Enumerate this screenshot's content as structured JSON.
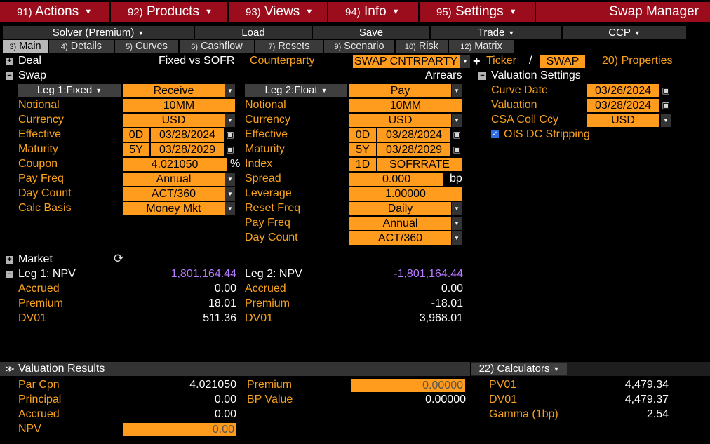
{
  "menu": {
    "actions": {
      "num": "91)",
      "label": "Actions"
    },
    "products": {
      "num": "92)",
      "label": "Products"
    },
    "views": {
      "num": "93)",
      "label": "Views"
    },
    "info": {
      "num": "94)",
      "label": "Info"
    },
    "settings": {
      "num": "95)",
      "label": "Settings"
    },
    "app_title": "Swap Manager"
  },
  "actions_row": {
    "solver": "Solver (Premium)",
    "load": "Load",
    "save": "Save",
    "trade": "Trade",
    "ccp": "CCP"
  },
  "tabs": [
    {
      "num": "3)",
      "label": "Main"
    },
    {
      "num": "4)",
      "label": "Details"
    },
    {
      "num": "5)",
      "label": "Curves"
    },
    {
      "num": "6)",
      "label": "Cashflow"
    },
    {
      "num": "7)",
      "label": "Resets"
    },
    {
      "num": "9)",
      "label": "Scenario"
    },
    {
      "num": "10)",
      "label": "Risk"
    },
    {
      "num": "12)",
      "label": "Matrix"
    }
  ],
  "deal": {
    "label": "Deal",
    "type": "Fixed vs SOFR",
    "counterparty_label": "Counterparty",
    "counterparty_value": "SWAP CNTRPARTY",
    "ticker_label": "Ticker",
    "slash": "/",
    "ticker_value": "SWAP",
    "properties": "20) Properties"
  },
  "swap": {
    "label": "Swap",
    "arrears": "Arrears",
    "leg1": {
      "header": "Leg 1:Fixed",
      "direction": "Receive",
      "notional_label": "Notional",
      "notional": "10MM",
      "currency_label": "Currency",
      "currency": "USD",
      "effective_label": "Effective",
      "effective_off": "0D",
      "effective": "03/28/2024",
      "maturity_label": "Maturity",
      "maturity_off": "5Y",
      "maturity": "03/28/2029",
      "coupon_label": "Coupon",
      "coupon": "4.021050",
      "coupon_unit": "%",
      "payfreq_label": "Pay Freq",
      "payfreq": "Annual",
      "daycount_label": "Day Count",
      "daycount": "ACT/360",
      "calcbasis_label": "Calc Basis",
      "calcbasis": "Money Mkt"
    },
    "leg2": {
      "header": "Leg 2:Float",
      "direction": "Pay",
      "notional_label": "Notional",
      "notional": "10MM",
      "currency_label": "Currency",
      "currency": "USD",
      "effective_label": "Effective",
      "effective_off": "0D",
      "effective": "03/28/2024",
      "maturity_label": "Maturity",
      "maturity_off": "5Y",
      "maturity": "03/28/2029",
      "index_label": "Index",
      "index_tenor": "1D",
      "index": "SOFRRATE",
      "spread_label": "Spread",
      "spread": "0.000",
      "spread_unit": "bp",
      "leverage_label": "Leverage",
      "leverage": "1.00000",
      "resetfreq_label": "Reset Freq",
      "resetfreq": "Daily",
      "payfreq_label": "Pay Freq",
      "payfreq": "Annual",
      "daycount_label": "Day Count",
      "daycount": "ACT/360"
    }
  },
  "valuation_settings": {
    "label": "Valuation Settings",
    "curve_date_label": "Curve Date",
    "curve_date": "03/26/2024",
    "valuation_label": "Valuation",
    "valuation": "03/28/2024",
    "csa_label": "CSA Coll Ccy",
    "csa": "USD",
    "ois_label": "OIS DC Stripping"
  },
  "market": {
    "label": "Market",
    "leg1": {
      "npv_label": "Leg 1: NPV",
      "npv": "1,801,164.44",
      "accrued_label": "Accrued",
      "accrued": "0.00",
      "premium_label": "Premium",
      "premium": "18.01",
      "dv01_label": "DV01",
      "dv01": "511.36"
    },
    "leg2": {
      "npv_label": "Leg 2: NPV",
      "npv": "-1,801,164.44",
      "accrued_label": "Accrued",
      "accrued": "0.00",
      "premium_label": "Premium",
      "premium": "-18.01",
      "dv01_label": "DV01",
      "dv01": "3,968.01"
    }
  },
  "results": {
    "label": "Valuation Results",
    "calculators": "22) Calculators",
    "parcpn_label": "Par Cpn",
    "parcpn": "4.021050",
    "principal_label": "Principal",
    "principal": "0.00",
    "accrued_label": "Accrued",
    "accrued": "0.00",
    "npv_label": "NPV",
    "npv": "0.00",
    "premium_label": "Premium",
    "premium": "0.00000",
    "bpvalue_label": "BP Value",
    "bpvalue": "0.00000",
    "pv01_label": "PV01",
    "pv01": "4,479.34",
    "dv01_label": "DV01",
    "dv01": "4,479.37",
    "gamma_label": "Gamma (1bp)",
    "gamma": "2.54"
  }
}
